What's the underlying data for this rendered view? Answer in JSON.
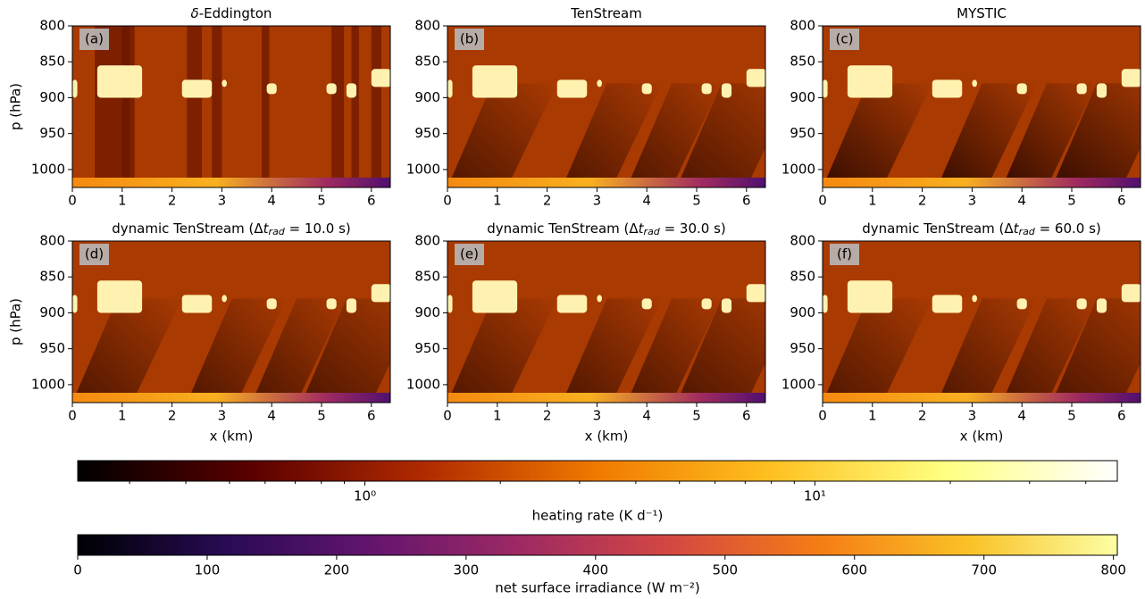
{
  "chart_data": [
    {
      "type": "heatmap",
      "title": [
        {
          "text": "δ",
          "style": "italic"
        },
        {
          "text": "-Eddington"
        }
      ],
      "panel_label": "(a)",
      "ylabel": "p (hPa)",
      "xlim": [
        0,
        6.38
      ],
      "xticks": [
        0,
        1,
        2,
        3,
        4,
        5,
        6
      ],
      "ylim": [
        1025,
        800
      ],
      "yticks": [
        800,
        850,
        900,
        950,
        1000
      ]
    },
    {
      "type": "heatmap",
      "title": [
        {
          "text": "TenStream"
        }
      ],
      "panel_label": "(b)",
      "xlim": [
        0,
        6.38
      ],
      "xticks": [
        0,
        1,
        2,
        3,
        4,
        5,
        6
      ],
      "ylim": [
        1025,
        800
      ],
      "yticks": [
        800,
        850,
        900,
        950,
        1000
      ]
    },
    {
      "type": "heatmap",
      "title": [
        {
          "text": "MYSTIC"
        }
      ],
      "panel_label": "(c)",
      "xlim": [
        0,
        6.38
      ],
      "xticks": [
        0,
        1,
        2,
        3,
        4,
        5,
        6
      ],
      "ylim": [
        1025,
        800
      ],
      "yticks": [
        800,
        850,
        900,
        950,
        1000
      ]
    },
    {
      "type": "heatmap",
      "title": [
        {
          "text": "dynamic TenStream (Δ"
        },
        {
          "text": "t",
          "style": "italic"
        },
        {
          "text": "rad",
          "style": "sub"
        },
        {
          "text": " = 10.0 s)"
        }
      ],
      "panel_label": "(d)",
      "ylabel": "p (hPa)",
      "xlabel": "x (km)",
      "xlim": [
        0,
        6.38
      ],
      "xticks": [
        0,
        1,
        2,
        3,
        4,
        5,
        6
      ],
      "ylim": [
        1025,
        800
      ],
      "yticks": [
        800,
        850,
        900,
        950,
        1000
      ]
    },
    {
      "type": "heatmap",
      "title": [
        {
          "text": "dynamic TenStream (Δ"
        },
        {
          "text": "t",
          "style": "italic"
        },
        {
          "text": "rad",
          "style": "sub"
        },
        {
          "text": " = 30.0 s)"
        }
      ],
      "panel_label": "(e)",
      "xlabel": "x (km)",
      "xlim": [
        0,
        6.38
      ],
      "xticks": [
        0,
        1,
        2,
        3,
        4,
        5,
        6
      ],
      "ylim": [
        1025,
        800
      ],
      "yticks": [
        800,
        850,
        900,
        950,
        1000
      ]
    },
    {
      "type": "heatmap",
      "title": [
        {
          "text": "dynamic TenStream (Δ"
        },
        {
          "text": "t",
          "style": "italic"
        },
        {
          "text": "rad",
          "style": "sub"
        },
        {
          "text": " = 60.0 s)"
        }
      ],
      "panel_label": "(f)",
      "xlabel": "x (km)",
      "xlim": [
        0,
        6.38
      ],
      "xticks": [
        0,
        1,
        2,
        3,
        4,
        5,
        6
      ],
      "ylim": [
        1025,
        800
      ],
      "yticks": [
        800,
        850,
        900,
        950,
        1000
      ]
    },
    {
      "type": "colorbar",
      "label": "heating rate (K d⁻¹)",
      "log_scale": true,
      "xlim": [
        0.23,
        47
      ],
      "xticks": [
        {
          "value": 1,
          "label": "10⁰"
        },
        {
          "value": 10,
          "label": "10¹"
        }
      ],
      "minor_ticks": [
        0.3,
        0.4,
        0.5,
        0.6,
        0.7,
        0.8,
        0.9,
        2,
        3,
        4,
        5,
        6,
        7,
        8,
        9,
        20,
        30,
        40
      ],
      "colors": [
        "#000000",
        "#5a0000",
        "#b02a00",
        "#f07a00",
        "#ffc020",
        "#ffff80",
        "#ffffff"
      ]
    },
    {
      "type": "colorbar",
      "label": "net surface irradiance (W m⁻²)",
      "log_scale": false,
      "xlim": [
        0,
        803
      ],
      "xticks": [
        0,
        100,
        200,
        300,
        400,
        500,
        600,
        700,
        800
      ],
      "colors": [
        "#000004",
        "#280b54",
        "#65156e",
        "#9f2a63",
        "#d44842",
        "#f57d15",
        "#fac127",
        "#fcffa4"
      ]
    }
  ]
}
